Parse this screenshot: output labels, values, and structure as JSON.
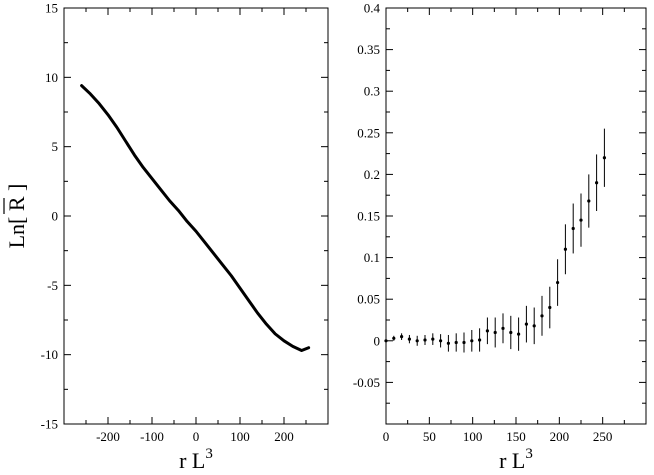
{
  "chart_data": [
    {
      "type": "line",
      "title": "",
      "xlabel": "r L",
      "xlabel_sup": "3",
      "ylabel": "Ln[ R ]",
      "ylabel_parts": {
        "prefix": "Ln[ ",
        "symbol": "R",
        "suffix": " ]"
      },
      "xlim": [
        -300,
        300
      ],
      "ylim": [
        -15,
        15
      ],
      "x_ticks": [
        -200,
        -100,
        0,
        100,
        200
      ],
      "x_tick_labels": [
        "-200",
        "-100",
        "0",
        "100",
        "200"
      ],
      "y_ticks": [
        -15,
        -10,
        -5,
        0,
        5,
        10,
        15
      ],
      "y_tick_labels": [
        "-15",
        "-10",
        "-5",
        "0",
        "5",
        "10",
        "15"
      ],
      "grid": false,
      "series": [
        {
          "x": [
            -260,
            -240,
            -220,
            -200,
            -180,
            -160,
            -140,
            -120,
            -100,
            -80,
            -60,
            -40,
            -20,
            0,
            20,
            40,
            60,
            80,
            100,
            120,
            140,
            160,
            180,
            200,
            220,
            240,
            256
          ],
          "y": [
            9.4,
            8.8,
            8.1,
            7.3,
            6.4,
            5.4,
            4.4,
            3.5,
            2.7,
            1.9,
            1.1,
            0.4,
            -0.4,
            -1.1,
            -1.9,
            -2.7,
            -3.5,
            -4.3,
            -5.2,
            -6.1,
            -7.0,
            -7.8,
            -8.5,
            -9.0,
            -9.4,
            -9.7,
            -9.5
          ]
        }
      ]
    },
    {
      "type": "scatter",
      "title": "",
      "xlabel": "r L",
      "xlabel_sup": "3",
      "ylabel": "",
      "xlim": [
        0,
        300
      ],
      "ylim": [
        -0.1,
        0.4
      ],
      "x_ticks": [
        0,
        50,
        100,
        150,
        200,
        250
      ],
      "x_tick_labels": [
        "0",
        "50",
        "100",
        "150",
        "200",
        "250"
      ],
      "y_ticks": [
        -0.05,
        0,
        0.05,
        0.1,
        0.15,
        0.2,
        0.25,
        0.3,
        0.35,
        0.4
      ],
      "y_tick_labels": [
        "-0.05",
        "0",
        "0.05",
        "0.1",
        "0.15",
        "0.2",
        "0.25",
        "0.3",
        "0.35",
        "0.4"
      ],
      "grid": false,
      "series": [
        {
          "x": [
            0,
            9,
            18,
            27,
            36,
            45,
            54,
            63,
            72,
            81,
            90,
            99,
            108,
            117,
            126,
            135,
            144,
            153,
            162,
            171,
            180,
            189,
            198,
            207,
            216,
            225,
            234,
            243,
            252
          ],
          "y": [
            0.0,
            0.003,
            0.005,
            0.002,
            0.0,
            0.001,
            0.002,
            0.0,
            -0.003,
            -0.002,
            -0.002,
            0.0,
            0.001,
            0.012,
            0.01,
            0.015,
            0.01,
            0.008,
            0.02,
            0.018,
            0.03,
            0.04,
            0.07,
            0.11,
            0.135,
            0.145,
            0.168,
            0.19,
            0.22
          ],
          "err": [
            0.002,
            0.003,
            0.004,
            0.005,
            0.006,
            0.006,
            0.007,
            0.008,
            0.01,
            0.011,
            0.012,
            0.013,
            0.014,
            0.016,
            0.018,
            0.018,
            0.02,
            0.02,
            0.022,
            0.022,
            0.024,
            0.025,
            0.028,
            0.03,
            0.03,
            0.032,
            0.032,
            0.034,
            0.035
          ]
        }
      ]
    }
  ]
}
